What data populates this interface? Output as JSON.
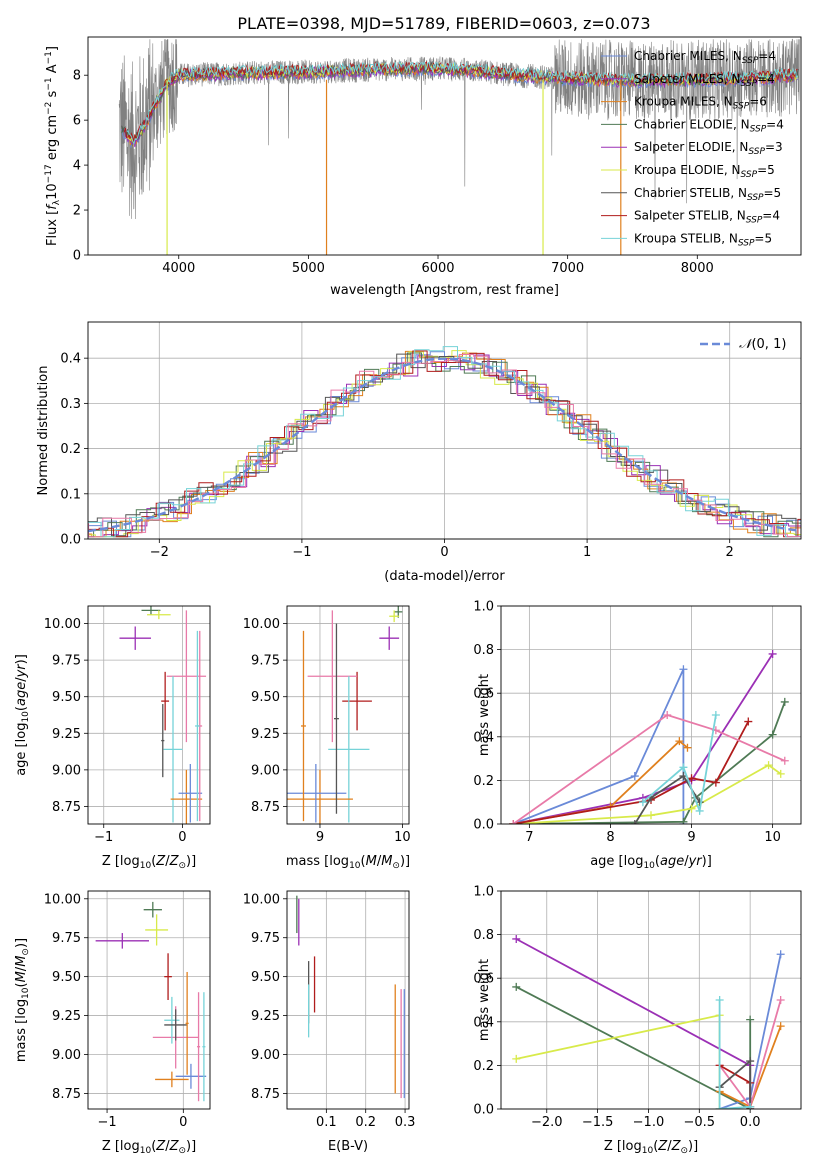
{
  "title": "PLATE=0398, MJD=51789, FIBERID=0603, z=0.073",
  "colors": {
    "Chabrier MILES": "#6a8ad8",
    "Salpeter MILES": "#9b30b5",
    "Kroupa MILES": "#e0801e",
    "Chabrier ELODIE": "#4f7a55",
    "Salpeter ELODIE": "#9b30b5",
    "Kroupa ELODIE": "#d8ea4a",
    "Chabrier STELIB": "#555555",
    "Salpeter STELIB": "#b01c1c",
    "Kroupa STELIB": "#76d3d8",
    "pink": "#e87aa8"
  },
  "chart_data": [
    {
      "id": "spectrum",
      "type": "line",
      "xlabel": "wavelength [Angstrom, rest frame]",
      "ylabel": "Flux [f_λ 10^-17 erg cm^-2 s^-1 A^-1]",
      "xlim": [
        3300,
        8800
      ],
      "ylim": [
        0,
        9.7
      ],
      "xticks": [
        "4000",
        "5000",
        "6000",
        "7000",
        "8000"
      ],
      "yticks": [
        "0",
        "2",
        "4",
        "6",
        "8"
      ],
      "grid": false,
      "legend_position": "right",
      "legend": [
        {
          "name": "Chabrier MILES",
          "nssp": "4",
          "color": "#6a8ad8"
        },
        {
          "name": "Salpeter MILES",
          "nssp": "4",
          "color": "#9b30b5"
        },
        {
          "name": "Kroupa MILES",
          "nssp": "6",
          "color": "#e0801e"
        },
        {
          "name": "Chabrier ELODIE",
          "nssp": "4",
          "color": "#4f7a55"
        },
        {
          "name": "Salpeter ELODIE",
          "nssp": "3",
          "color": "#9b30b5"
        },
        {
          "name": "Kroupa ELODIE",
          "nssp": "5",
          "color": "#d8ea4a"
        },
        {
          "name": "Chabrier STELIB",
          "nssp": "5",
          "color": "#555555"
        },
        {
          "name": "Salpeter STELIB",
          "nssp": "4",
          "color": "#b01c1c"
        },
        {
          "name": "Kroupa STELIB",
          "nssp": "5",
          "color": "#76d3d8"
        }
      ],
      "model_profile": [
        [
          3560,
          5.6
        ],
        [
          3650,
          5.0
        ],
        [
          3750,
          5.9
        ],
        [
          3900,
          7.6
        ],
        [
          4000,
          8.0
        ],
        [
          4500,
          8.1
        ],
        [
          5000,
          8.15
        ],
        [
          5500,
          8.25
        ],
        [
          6000,
          8.3
        ],
        [
          6300,
          8.2
        ],
        [
          6600,
          8.0
        ],
        [
          7000,
          7.85
        ],
        [
          7500,
          7.75
        ],
        [
          8000,
          7.8
        ],
        [
          8500,
          7.9
        ],
        [
          8800,
          8.0
        ]
      ]
    },
    {
      "id": "residuals",
      "type": "line",
      "xlabel": "(data-model)/error",
      "ylabel": "Normed distribution",
      "xlim": [
        -2.5,
        2.5
      ],
      "ylim": [
        0,
        0.48
      ],
      "xticks": [
        "−2",
        "−1",
        "0",
        "1",
        "2"
      ],
      "yticks": [
        "0.0",
        "0.1",
        "0.2",
        "0.3",
        "0.4"
      ],
      "grid": true,
      "legend_position": "top-right",
      "series": [
        {
          "name": "N(0,1)",
          "mean": 0,
          "sigma": 1,
          "color": "#6a8ad8"
        }
      ]
    },
    {
      "id": "age-vs-Z",
      "type": "scatter",
      "xlabel": "Z [log10(Z/Z⊙)]",
      "ylabel": "age  [log10(age/yr)]",
      "xlim": [
        -1.2,
        0.35
      ],
      "ylim": [
        8.63,
        10.12
      ],
      "xticks": [
        "−1",
        "0"
      ],
      "yticks": [
        "8.75",
        "9.00",
        "9.25",
        "9.50",
        "9.75",
        "10.00"
      ],
      "grid": true,
      "points": [
        {
          "x": -0.4,
          "y": 10.09,
          "xerr": 0.12,
          "yerr": 0.03,
          "color": "#4f7a55"
        },
        {
          "x": -0.3,
          "y": 10.06,
          "xerr": 0.15,
          "yerr": 0.03,
          "color": "#d8ea4a"
        },
        {
          "x": -0.6,
          "y": 9.9,
          "xerr": 0.2,
          "yerr": 0.08,
          "color": "#9b30b5"
        },
        {
          "x": -0.22,
          "y": 9.47,
          "xerr": 0.05,
          "yerr": 0.2,
          "color": "#b01c1c"
        },
        {
          "x": 0.05,
          "y": 9.64,
          "xerr": 0.25,
          "yerr": 0.45,
          "color": "#e87aa8"
        },
        {
          "x": -0.12,
          "y": 9.14,
          "xerr": 0.12,
          "yerr": 0.5,
          "color": "#76d3d8"
        },
        {
          "x": 0.05,
          "y": 8.8,
          "xerr": 0.2,
          "yerr": 0.2,
          "color": "#e0801e"
        },
        {
          "x": 0.1,
          "y": 8.84,
          "xerr": 0.15,
          "yerr": 0.2,
          "color": "#6a8ad8"
        },
        {
          "x": 0.22,
          "y": 9.3,
          "xerr": 0.03,
          "yerr": 0.65,
          "color": "#e87aa8"
        },
        {
          "x": 0.19,
          "y": 9.3,
          "xerr": 0.03,
          "yerr": 0.65,
          "color": "#76d3d8"
        },
        {
          "x": -0.25,
          "y": 9.2,
          "xerr": 0.02,
          "yerr": 0.25,
          "color": "#555555"
        }
      ]
    },
    {
      "id": "age-vs-mass",
      "type": "scatter",
      "xlabel": "mass [log10(M/M⊙)]",
      "ylabel": "",
      "xlim": [
        8.6,
        10.08
      ],
      "ylim": [
        8.63,
        10.12
      ],
      "xticks": [
        "9",
        "10"
      ],
      "yticks": [
        "8.75",
        "9.00",
        "9.25",
        "9.50",
        "9.75",
        "10.00"
      ],
      "grid": true,
      "points": [
        {
          "x": 9.95,
          "y": 10.08,
          "xerr": 0.05,
          "yerr": 0.04,
          "color": "#4f7a55"
        },
        {
          "x": 9.9,
          "y": 10.05,
          "xerr": 0.06,
          "yerr": 0.04,
          "color": "#d8ea4a"
        },
        {
          "x": 9.84,
          "y": 9.9,
          "xerr": 0.12,
          "yerr": 0.08,
          "color": "#9b30b5"
        },
        {
          "x": 9.45,
          "y": 9.47,
          "xerr": 0.18,
          "yerr": 0.2,
          "color": "#b01c1c"
        },
        {
          "x": 9.15,
          "y": 9.64,
          "xerr": 0.3,
          "yerr": 0.45,
          "color": "#e87aa8"
        },
        {
          "x": 9.35,
          "y": 9.14,
          "xerr": 0.25,
          "yerr": 0.5,
          "color": "#76d3d8"
        },
        {
          "x": 9.0,
          "y": 8.8,
          "xerr": 0.4,
          "yerr": 0.2,
          "color": "#e0801e"
        },
        {
          "x": 8.95,
          "y": 8.84,
          "xerr": 0.37,
          "yerr": 0.2,
          "color": "#6a8ad8"
        },
        {
          "x": 8.8,
          "y": 9.3,
          "xerr": 0.03,
          "yerr": 0.65,
          "color": "#e0801e"
        },
        {
          "x": 9.2,
          "y": 9.35,
          "xerr": 0.03,
          "yerr": 0.65,
          "color": "#555555"
        }
      ]
    },
    {
      "id": "weight-vs-age",
      "type": "line",
      "xlabel": "age  [log10(age/yr)]",
      "ylabel": "mass weight",
      "xlim": [
        6.65,
        10.35
      ],
      "ylim": [
        0,
        1.0
      ],
      "xticks": [
        "7",
        "8",
        "9",
        "10"
      ],
      "yticks": [
        "0.0",
        "0.2",
        "0.4",
        "0.6",
        "0.8",
        "1.0"
      ],
      "grid": true,
      "series": [
        {
          "color": "#6a8ad8",
          "x": [
            6.8,
            8.3,
            8.9,
            8.9
          ],
          "y": [
            0.0,
            0.22,
            0.71,
            0.0
          ]
        },
        {
          "color": "#9b30b5",
          "x": [
            6.8,
            8.4,
            9.0,
            10.0
          ],
          "y": [
            0.0,
            0.12,
            0.2,
            0.78
          ]
        },
        {
          "color": "#e0801e",
          "x": [
            6.8,
            8.0,
            8.85,
            8.95
          ],
          "y": [
            0.0,
            0.08,
            0.38,
            0.35
          ]
        },
        {
          "color": "#4f7a55",
          "x": [
            6.8,
            8.9,
            9.05,
            10.0,
            10.15
          ],
          "y": [
            0.0,
            0.01,
            0.12,
            0.41,
            0.56
          ]
        },
        {
          "color": "#d8ea4a",
          "x": [
            6.8,
            8.5,
            9.0,
            9.95,
            10.1
          ],
          "y": [
            0.0,
            0.04,
            0.07,
            0.27,
            0.23
          ]
        },
        {
          "color": "#b01c1c",
          "x": [
            6.8,
            8.5,
            9.0,
            9.3,
            9.7
          ],
          "y": [
            0.0,
            0.11,
            0.21,
            0.19,
            0.47
          ]
        },
        {
          "color": "#555555",
          "x": [
            8.3,
            8.5,
            8.9,
            9.1
          ],
          "y": [
            0.0,
            0.12,
            0.22,
            0.1
          ]
        },
        {
          "color": "#e87aa8",
          "x": [
            6.8,
            8.7,
            9.3,
            10.15
          ],
          "y": [
            0.0,
            0.5,
            0.43,
            0.29
          ]
        },
        {
          "color": "#76d3d8",
          "x": [
            8.4,
            8.9,
            9.1,
            9.3
          ],
          "y": [
            0.1,
            0.26,
            0.06,
            0.5
          ]
        }
      ]
    },
    {
      "id": "mass-vs-Z",
      "type": "scatter",
      "xlabel": "Z [log10(Z/Z⊙)]",
      "ylabel": "mass [log10(M/M⊙)]",
      "xlim": [
        -1.25,
        0.35
      ],
      "ylim": [
        8.65,
        10.05
      ],
      "xticks": [
        "−1",
        "0"
      ],
      "yticks": [
        "8.75",
        "9.00",
        "9.25",
        "9.50",
        "9.75",
        "10.00"
      ],
      "grid": true,
      "points": [
        {
          "x": -0.4,
          "y": 9.93,
          "xerr": 0.12,
          "yerr": 0.05,
          "color": "#4f7a55"
        },
        {
          "x": -0.35,
          "y": 9.8,
          "xerr": 0.15,
          "yerr": 0.1,
          "color": "#d8ea4a"
        },
        {
          "x": -0.8,
          "y": 9.73,
          "xerr": 0.35,
          "yerr": 0.05,
          "color": "#9b30b5"
        },
        {
          "x": -0.2,
          "y": 9.5,
          "xerr": 0.05,
          "yerr": 0.15,
          "color": "#b01c1c"
        },
        {
          "x": -0.1,
          "y": 9.11,
          "xerr": 0.3,
          "yerr": 0.2,
          "color": "#e87aa8"
        },
        {
          "x": -0.15,
          "y": 9.22,
          "xerr": 0.1,
          "yerr": 0.15,
          "color": "#76d3d8"
        },
        {
          "x": -0.1,
          "y": 9.19,
          "xerr": 0.15,
          "yerr": 0.1,
          "color": "#555555"
        },
        {
          "x": -0.15,
          "y": 8.84,
          "xerr": 0.22,
          "yerr": 0.05,
          "color": "#e0801e"
        },
        {
          "x": 0.05,
          "y": 9.2,
          "xerr": 0.02,
          "yerr": 0.33,
          "color": "#e0801e"
        },
        {
          "x": 0.1,
          "y": 8.86,
          "xerr": 0.2,
          "yerr": 0.08,
          "color": "#6a8ad8"
        },
        {
          "x": 0.2,
          "y": 9.05,
          "xerr": 0.02,
          "yerr": 0.35,
          "color": "#e87aa8"
        },
        {
          "x": 0.27,
          "y": 9.05,
          "xerr": 0.02,
          "yerr": 0.35,
          "color": "#76d3d8"
        }
      ]
    },
    {
      "id": "mass-vs-ebv",
      "type": "scatter",
      "xlabel": "E(B-V)",
      "ylabel": "",
      "xlim": [
        0.0,
        0.31
      ],
      "ylim": [
        8.65,
        10.05
      ],
      "xticks": [
        "0.1",
        "0.2",
        "0.3"
      ],
      "yticks": [
        "8.75",
        "9.00",
        "9.25",
        "9.50",
        "9.75",
        "10.00"
      ],
      "grid": true,
      "points": [
        {
          "x": 0.025,
          "y": 9.9,
          "xerr": 0.0,
          "yerr": 0.12,
          "color": "#4f7a55"
        },
        {
          "x": 0.03,
          "y": 9.85,
          "xerr": 0.0,
          "yerr": 0.15,
          "color": "#9b30b5"
        },
        {
          "x": 0.07,
          "y": 9.45,
          "xerr": 0.0,
          "yerr": 0.18,
          "color": "#b01c1c"
        },
        {
          "x": 0.055,
          "y": 9.4,
          "xerr": 0.0,
          "yerr": 0.2,
          "color": "#555555"
        },
        {
          "x": 0.055,
          "y": 9.28,
          "xerr": 0.0,
          "yerr": 0.17,
          "color": "#76d3d8"
        },
        {
          "x": 0.275,
          "y": 9.1,
          "xerr": 0.0,
          "yerr": 0.35,
          "color": "#e0801e"
        },
        {
          "x": 0.29,
          "y": 9.07,
          "xerr": 0.0,
          "yerr": 0.35,
          "color": "#e87aa8"
        },
        {
          "x": 0.298,
          "y": 9.07,
          "xerr": 0.0,
          "yerr": 0.35,
          "color": "#6a8ad8"
        }
      ]
    },
    {
      "id": "weight-vs-Z",
      "type": "line",
      "xlabel": "Z [log10(Z/Z⊙)]",
      "ylabel": "mass weight",
      "xlim": [
        -2.45,
        0.5
      ],
      "ylim": [
        0,
        1.0
      ],
      "xticks": [
        "−2.0",
        "−1.5",
        "−1.0",
        "−0.5",
        "0.0"
      ],
      "yticks": [
        "0.0",
        "0.2",
        "0.4",
        "0.6",
        "0.8",
        "1.0"
      ],
      "grid": true,
      "series": [
        {
          "color": "#9b30b5",
          "x": [
            -2.3,
            0.0,
            0.0
          ],
          "y": [
            0.78,
            0.2,
            0.0
          ]
        },
        {
          "color": "#4f7a55",
          "x": [
            -2.3,
            0.0,
            0.0
          ],
          "y": [
            0.56,
            0.0,
            0.41
          ]
        },
        {
          "color": "#d8ea4a",
          "x": [
            -2.3,
            -0.3,
            -0.3
          ],
          "y": [
            0.23,
            0.43,
            0.0
          ]
        },
        {
          "color": "#6a8ad8",
          "x": [
            -0.3,
            0.0,
            0.3
          ],
          "y": [
            0.0,
            0.05,
            0.71
          ]
        },
        {
          "color": "#e0801e",
          "x": [
            -0.3,
            0.0,
            0.3
          ],
          "y": [
            0.08,
            0.01,
            0.38
          ]
        },
        {
          "color": "#e87aa8",
          "x": [
            -0.3,
            0.0,
            0.3
          ],
          "y": [
            0.2,
            0.01,
            0.5
          ]
        },
        {
          "color": "#b01c1c",
          "x": [
            -0.3,
            0.0,
            0.0
          ],
          "y": [
            0.2,
            0.12,
            0.0
          ]
        },
        {
          "color": "#555555",
          "x": [
            -0.3,
            0.0,
            0.0
          ],
          "y": [
            0.1,
            0.22,
            0.0
          ]
        },
        {
          "color": "#76d3d8",
          "x": [
            -0.3,
            -0.3,
            0.0
          ],
          "y": [
            0.5,
            0.0,
            0.01
          ]
        }
      ]
    }
  ]
}
